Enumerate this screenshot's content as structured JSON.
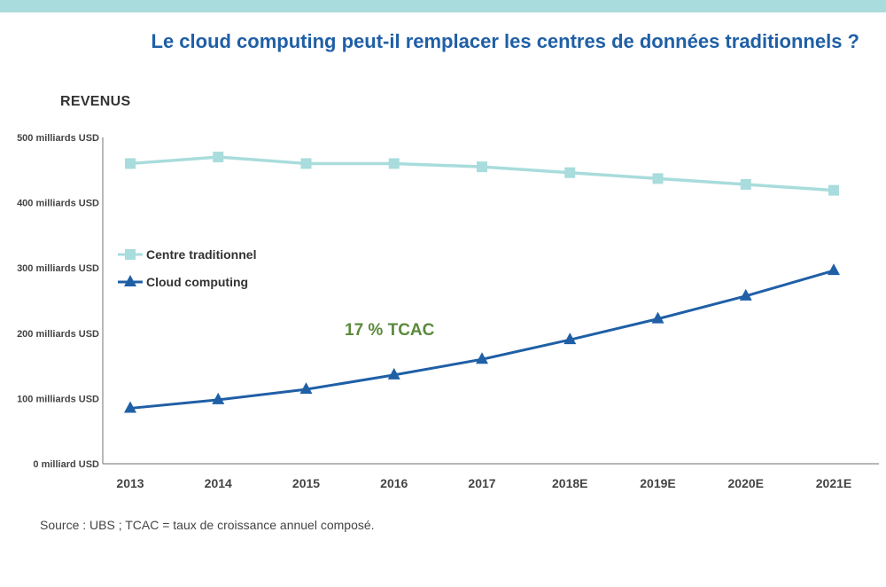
{
  "title": "Le cloud computing peut-il remplacer les centres de données traditionnels ?",
  "source": "Source : UBS ; TCAC = taux de croissance annuel composé.",
  "colors": {
    "band": "#a9dcdc",
    "title": "#1f5fa6",
    "traditional": "#a9dcdc",
    "cloud": "#1f5fa6",
    "annotation": "#5a8a3c"
  },
  "chart_data": {
    "type": "line",
    "ylabel": "REVENUS",
    "xlabel": "",
    "categories": [
      "2013",
      "2014",
      "2015",
      "2016",
      "2017",
      "2018E",
      "2019E",
      "2020E",
      "2021E"
    ],
    "y_ticks": [
      {
        "value": 0,
        "label": "0 milliard USD"
      },
      {
        "value": 100,
        "label": "100 milliards USD"
      },
      {
        "value": 200,
        "label": "200 milliards USD"
      },
      {
        "value": 300,
        "label": "300 milliards USD"
      },
      {
        "value": 400,
        "label": "400 milliards USD"
      },
      {
        "value": 500,
        "label": "500 milliards USD"
      }
    ],
    "ylim": [
      0,
      500
    ],
    "grid": false,
    "legend_position": "left",
    "series": [
      {
        "name": "Centre traditionnel",
        "marker": "square",
        "values": [
          460,
          470,
          460,
          460,
          455,
          446,
          437,
          428,
          419
        ]
      },
      {
        "name": "Cloud computing",
        "marker": "triangle",
        "values": [
          85,
          98,
          114,
          136,
          160,
          190,
          222,
          257,
          296
        ]
      }
    ],
    "annotations": [
      {
        "text": "17 % TCAC",
        "x": "2017",
        "y": 200
      }
    ]
  }
}
